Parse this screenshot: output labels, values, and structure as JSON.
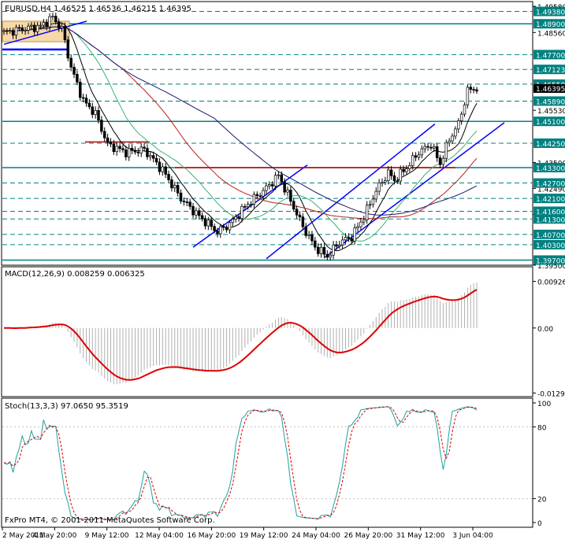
{
  "header": {
    "symbol": "EURUSD,H4",
    "ohlc": "1.46525 1.46536 1.46215 1.46395",
    "macd_label": "MACD(12,26,9) 0.008259 0.006325",
    "stoch_label": "Stoch(13,3,3) 97.0650 95.3519",
    "copyright": "FxPro MT4, © 2001-2011 MetaQuotes Software Corp."
  },
  "colors": {
    "candle": "#000000",
    "level_line": "#008080",
    "trend_channel": "#0000ff",
    "resistance": "#cc0000",
    "ma_black": "#000000",
    "ma_green": "#3cb371",
    "ma_red": "#b22222",
    "ma_navy": "#191970",
    "macd_signal": "#dd0000",
    "macd_hist": "#b0b0b0",
    "stoch_main": "#20a0a0",
    "stoch_signal": "#dd0000",
    "current_price_bg": "#008080",
    "box_fill": "#f6d9a8"
  },
  "chart_data": [
    {
      "type": "candlestick",
      "name": "price",
      "ylim": [
        1.395,
        1.4958
      ],
      "y_ticks": [
        "1.49580",
        "1.48560",
        "1.45530",
        "1.43500",
        "1.42490",
        "1.41470",
        "1.39500"
      ],
      "levels": [
        {
          "label": "1.49380",
          "value": 1.4938,
          "style": "dashed"
        },
        {
          "label": "1.48900",
          "value": 1.489,
          "style": "solid"
        },
        {
          "label": "1.47700",
          "value": 1.477,
          "style": "dashed"
        },
        {
          "label": "1.47123",
          "value": 1.47123,
          "style": "dashed"
        },
        {
          "label": "1.46550",
          "value": 1.4655,
          "style": "dashed"
        },
        {
          "label": "1.46395",
          "value": 1.46395,
          "style": "current"
        },
        {
          "label": "1.45890",
          "value": 1.4589,
          "style": "dashed"
        },
        {
          "label": "1.45100",
          "value": 1.451,
          "style": "solid"
        },
        {
          "label": "1.44250",
          "value": 1.4425,
          "style": "dashed"
        },
        {
          "label": "1.43300",
          "value": 1.433,
          "style": "solid"
        },
        {
          "label": "1.42700",
          "value": 1.427,
          "style": "dashed"
        },
        {
          "label": "1.42100",
          "value": 1.421,
          "style": "dashed"
        },
        {
          "label": "1.41600",
          "value": 1.416,
          "style": "dashed"
        },
        {
          "label": "1.41300",
          "value": 1.413,
          "style": "dashed"
        },
        {
          "label": "1.40700",
          "value": 1.407,
          "style": "dashed"
        },
        {
          "label": "1.40300",
          "value": 1.403,
          "style": "dashed"
        },
        {
          "label": "1.39700",
          "value": 1.397,
          "style": "solid"
        }
      ]
    },
    {
      "type": "line",
      "name": "macd",
      "ylim": [
        -0.013,
        0.0095
      ],
      "y_ticks": [
        "0.00926",
        "0.00",
        "-0.01291"
      ]
    },
    {
      "type": "line",
      "name": "stochastic",
      "ylim": [
        0,
        100
      ],
      "y_ticks": [
        "100",
        "80",
        "20",
        "0"
      ]
    }
  ],
  "x_axis": {
    "labels": [
      "2 May 2011",
      "4 May 20:00",
      "9 May 12:00",
      "12 May 04:00",
      "16 May 20:00",
      "19 May 12:00",
      "24 May 04:00",
      "26 May 20:00",
      "31 May 12:00",
      "3 Jun 04:00"
    ]
  }
}
